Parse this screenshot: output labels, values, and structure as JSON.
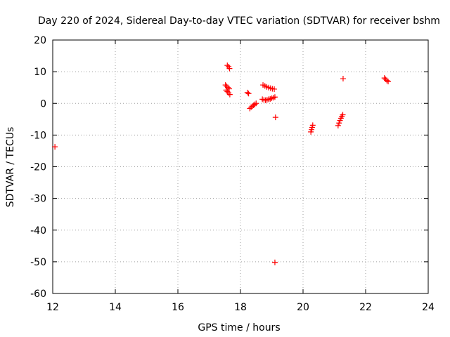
{
  "chart_data": {
    "type": "scatter",
    "title": "Day 220 of 2024, Sidereal Day-to-day VTEC variation (SDTVAR) for receiver bshm",
    "xlabel": "GPS time / hours",
    "ylabel": "SDTVAR / TECUs",
    "xlim": [
      12,
      24
    ],
    "ylim": [
      -60,
      20
    ],
    "xticks": [
      12,
      14,
      16,
      18,
      20,
      22,
      24
    ],
    "yticks": [
      -60,
      -50,
      -40,
      -30,
      -20,
      -10,
      0,
      10,
      20
    ],
    "xtick_labels": [
      "12",
      "14",
      "16",
      "18",
      "20",
      "22",
      "24"
    ],
    "ytick_labels": [
      "-60",
      "-50",
      "-40",
      "-30",
      "-20",
      "-10",
      "0",
      "10",
      "20"
    ],
    "grid": true,
    "marker": "+",
    "marker_color": "#ff0000",
    "points": [
      {
        "x": 12.07,
        "y": -13.7
      },
      {
        "x": 17.58,
        "y": 12.0
      },
      {
        "x": 17.62,
        "y": 11.6
      },
      {
        "x": 17.65,
        "y": 11.0
      },
      {
        "x": 17.52,
        "y": 5.8
      },
      {
        "x": 17.56,
        "y": 5.4
      },
      {
        "x": 17.6,
        "y": 5.0
      },
      {
        "x": 17.64,
        "y": 4.6
      },
      {
        "x": 17.54,
        "y": 4.2
      },
      {
        "x": 17.58,
        "y": 3.7
      },
      {
        "x": 17.62,
        "y": 3.3
      },
      {
        "x": 17.66,
        "y": 2.8
      },
      {
        "x": 18.22,
        "y": 3.4
      },
      {
        "x": 18.26,
        "y": 3.1
      },
      {
        "x": 18.3,
        "y": -1.6
      },
      {
        "x": 18.34,
        "y": -1.2
      },
      {
        "x": 18.38,
        "y": -0.9
      },
      {
        "x": 18.42,
        "y": -0.6
      },
      {
        "x": 18.46,
        "y": -0.3
      },
      {
        "x": 18.5,
        "y": 0.0
      },
      {
        "x": 18.7,
        "y": 1.3
      },
      {
        "x": 18.75,
        "y": 1.1
      },
      {
        "x": 18.8,
        "y": 1.0
      },
      {
        "x": 18.85,
        "y": 1.1
      },
      {
        "x": 18.9,
        "y": 1.3
      },
      {
        "x": 18.95,
        "y": 1.4
      },
      {
        "x": 19.0,
        "y": 1.6
      },
      {
        "x": 19.05,
        "y": 1.8
      },
      {
        "x": 19.1,
        "y": 2.0
      },
      {
        "x": 18.72,
        "y": 5.8
      },
      {
        "x": 18.78,
        "y": 5.5
      },
      {
        "x": 18.84,
        "y": 5.2
      },
      {
        "x": 18.9,
        "y": 5.0
      },
      {
        "x": 18.96,
        "y": 4.8
      },
      {
        "x": 19.02,
        "y": 4.6
      },
      {
        "x": 19.08,
        "y": 4.5
      },
      {
        "x": 19.12,
        "y": -4.4
      },
      {
        "x": 19.1,
        "y": -50.2
      },
      {
        "x": 20.25,
        "y": -9.0
      },
      {
        "x": 20.27,
        "y": -8.3
      },
      {
        "x": 20.29,
        "y": -7.6
      },
      {
        "x": 20.31,
        "y": -6.9
      },
      {
        "x": 21.12,
        "y": -7.0
      },
      {
        "x": 21.15,
        "y": -6.2
      },
      {
        "x": 21.18,
        "y": -5.4
      },
      {
        "x": 21.21,
        "y": -4.7
      },
      {
        "x": 21.24,
        "y": -4.1
      },
      {
        "x": 21.27,
        "y": -3.6
      },
      {
        "x": 21.28,
        "y": 7.8
      },
      {
        "x": 22.6,
        "y": 8.0
      },
      {
        "x": 22.64,
        "y": 7.6
      },
      {
        "x": 22.68,
        "y": 7.2
      },
      {
        "x": 22.72,
        "y": 6.9
      }
    ]
  }
}
